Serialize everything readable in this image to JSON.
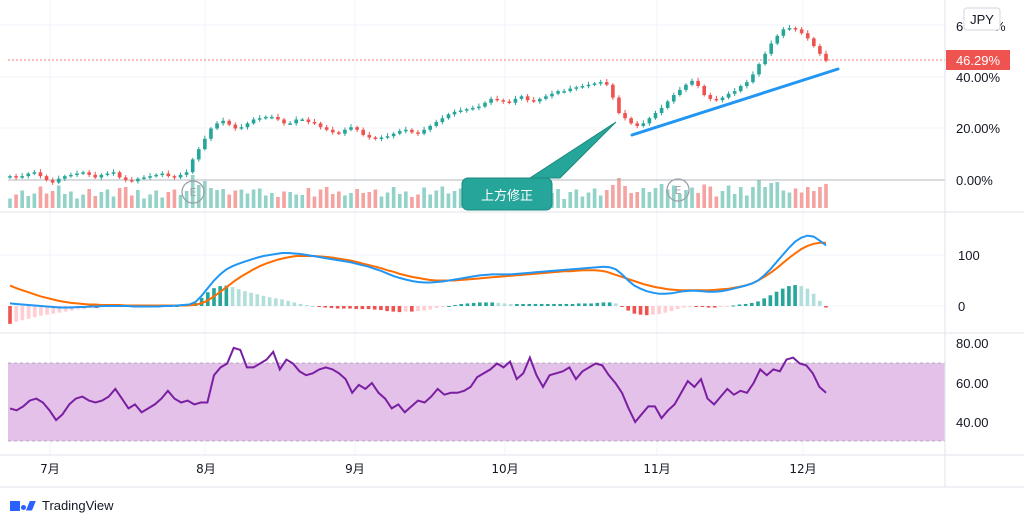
{
  "currency_badge": "JPY",
  "last_value_label": "46.29%",
  "price_axis_labels": [
    "6",
    "%",
    "40.00%",
    "20.00%",
    "0.00%"
  ],
  "macd_axis_labels": [
    "100",
    "0"
  ],
  "rsi_axis_labels": [
    "80.00",
    "60.00",
    "40.00"
  ],
  "x_axis_labels": [
    "7月",
    "8月",
    "9月",
    "10月",
    "11月",
    "12月"
  ],
  "callout_text": "上方修正",
  "earnings_marker": "E",
  "logo_text": "TradingView",
  "colors": {
    "up": "#26a69a",
    "down": "#ef5350",
    "vol_up": "#93d2c9",
    "vol_down": "#f4a3a1",
    "macd_line": "#2196f3",
    "signal_line": "#ff6d00",
    "rsi_line": "#7b1fa2",
    "rsi_band": "#e1bee7",
    "trendline": "#2196f3",
    "callout": "#26a69a"
  },
  "chart_data": [
    {
      "type": "candlestick",
      "panel": "price",
      "yunit": "%",
      "ylim": [
        -5,
        63
      ],
      "yticks": [
        0,
        20,
        40
      ],
      "last_value": 46.29,
      "x_labels": [
        "7月",
        "8月",
        "9月",
        "10月",
        "11月",
        "12月"
      ],
      "annotation": "上方修正",
      "series_close": [
        1.5,
        1.0,
        1.5,
        2.5,
        3.0,
        1.5,
        0.0,
        -1.0,
        0.5,
        1.5,
        2.0,
        2.5,
        3.0,
        2.0,
        1.0,
        2.0,
        2.5,
        3.0,
        1.0,
        0.0,
        -0.5,
        0.5,
        1.0,
        1.5,
        2.0,
        2.5,
        1.5,
        1.0,
        2.0,
        3.0,
        8.0,
        12.0,
        16.0,
        20.0,
        22.0,
        23.0,
        21.5,
        20.0,
        20.5,
        22.0,
        23.5,
        24.0,
        24.5,
        24.5,
        23.5,
        22.0,
        22.0,
        23.5,
        23.5,
        22.5,
        22.0,
        20.5,
        19.5,
        18.5,
        18.0,
        19.5,
        20.5,
        19.5,
        17.5,
        16.5,
        16.0,
        16.5,
        17.0,
        18.0,
        19.0,
        19.5,
        18.5,
        18.0,
        19.5,
        21.0,
        22.5,
        24.0,
        25.5,
        26.5,
        27.0,
        27.5,
        28.0,
        28.5,
        30.0,
        31.5,
        31.0,
        30.5,
        30.0,
        31.5,
        32.5,
        31.0,
        30.5,
        31.5,
        32.5,
        33.5,
        34.5,
        34.5,
        35.5,
        36.0,
        36.5,
        37.0,
        37.5,
        38.0,
        37.0,
        32.0,
        26.0,
        24.0,
        22.0,
        21.0,
        22.0,
        24.0,
        26.0,
        28.0,
        30.5,
        33.0,
        35.0,
        37.0,
        38.5,
        36.5,
        33.0,
        31.5,
        31.0,
        32.0,
        33.5,
        34.5,
        36.5,
        38.0,
        41.0,
        45.0,
        49.0,
        53.0,
        56.0,
        58.5,
        59.0,
        58.5,
        57.0,
        55.0,
        52.0,
        49.0,
        46.29
      ]
    },
    {
      "type": "line",
      "panel": "macd",
      "ylim": [
        -25,
        160
      ],
      "yticks": [
        0,
        100
      ],
      "series": [
        {
          "role": "macd",
          "color": "#2196f3",
          "values": [
            5,
            4,
            3,
            2,
            1,
            0,
            -1,
            -2,
            -3,
            -3,
            -3,
            -2,
            -2,
            -1,
            -1,
            0,
            0,
            0,
            0,
            0,
            -1,
            -1,
            -1,
            -1,
            -1,
            0,
            0,
            1,
            2,
            3,
            8,
            20,
            35,
            50,
            62,
            72,
            78,
            83,
            87,
            91,
            95,
            98,
            100,
            102,
            104,
            104,
            103,
            102,
            100,
            98,
            96,
            94,
            92,
            90,
            88,
            86,
            83,
            80,
            77,
            73,
            69,
            64,
            59,
            55,
            52,
            49,
            47,
            46,
            46,
            47,
            48,
            50,
            52,
            54,
            56,
            58,
            60,
            61,
            62,
            62,
            62,
            62,
            63,
            64,
            65,
            66,
            67,
            68,
            69,
            70,
            71,
            72,
            73,
            74,
            75,
            76,
            77,
            76,
            72,
            62,
            50,
            40,
            34,
            29,
            26,
            24,
            24,
            25,
            27,
            29,
            30,
            30,
            29,
            28,
            28,
            29,
            31,
            34,
            37,
            40,
            44,
            50,
            60,
            72,
            86,
            100,
            114,
            126,
            134,
            138,
            136,
            128,
            119
          ]
        },
        {
          "role": "signal",
          "color": "#ff6d00",
          "values": [
            40,
            35,
            31,
            27,
            23,
            19,
            16,
            13,
            10,
            8,
            6,
            5,
            4,
            3,
            3,
            2,
            2,
            2,
            2,
            1,
            1,
            1,
            1,
            1,
            1,
            1,
            1,
            1,
            1,
            1,
            2,
            4,
            8,
            15,
            23,
            32,
            41,
            50,
            58,
            65,
            72,
            78,
            83,
            87,
            91,
            94,
            96,
            98,
            98,
            98,
            98,
            97,
            96,
            95,
            93,
            91,
            89,
            86,
            83,
            80,
            77,
            74,
            70,
            67,
            63,
            60,
            57,
            55,
            53,
            51,
            50,
            50,
            50,
            50,
            51,
            52,
            53,
            54,
            55,
            56,
            57,
            58,
            59,
            60,
            61,
            62,
            63,
            64,
            65,
            66,
            67,
            68,
            68,
            69,
            70,
            70,
            70,
            69,
            67,
            63,
            59,
            55,
            51,
            47,
            43,
            40,
            37,
            35,
            33,
            32,
            31,
            31,
            31,
            31,
            31,
            31,
            32,
            33,
            34,
            36,
            38,
            41,
            45,
            51,
            58,
            66,
            75,
            85,
            95,
            104,
            112,
            118,
            122,
            124,
            124
          ]
        }
      ]
    },
    {
      "type": "line",
      "panel": "rsi",
      "ylim": [
        25,
        85
      ],
      "yticks": [
        40,
        60,
        80
      ],
      "band": [
        30,
        70
      ],
      "series": [
        {
          "role": "rsi",
          "color": "#7b1fa2",
          "values": [
            47,
            46,
            48,
            51,
            52,
            50,
            46,
            41,
            44,
            49,
            52,
            53,
            51,
            50,
            51,
            53,
            57,
            52,
            47,
            49,
            45,
            47,
            49,
            52,
            56,
            52,
            50,
            51,
            49,
            50,
            50,
            64,
            68,
            70,
            78,
            77,
            68,
            68,
            70,
            72,
            76,
            67,
            72,
            70,
            66,
            64,
            65,
            67,
            68,
            67,
            65,
            62,
            55,
            59,
            57,
            60,
            55,
            52,
            47,
            49,
            45,
            48,
            51,
            50,
            53,
            57,
            54,
            55,
            55,
            56,
            58,
            63,
            65,
            67,
            70,
            68,
            71,
            62,
            65,
            73,
            64,
            58,
            64,
            65,
            66,
            68,
            62,
            66,
            68,
            70,
            69,
            64,
            60,
            55,
            47,
            40,
            44,
            48,
            48,
            42,
            46,
            49,
            55,
            61,
            58,
            62,
            52,
            49,
            53,
            57,
            54,
            56,
            55,
            60,
            67,
            64,
            67,
            66,
            72,
            73,
            70,
            69,
            65,
            58,
            55
          ]
        }
      ]
    }
  ]
}
